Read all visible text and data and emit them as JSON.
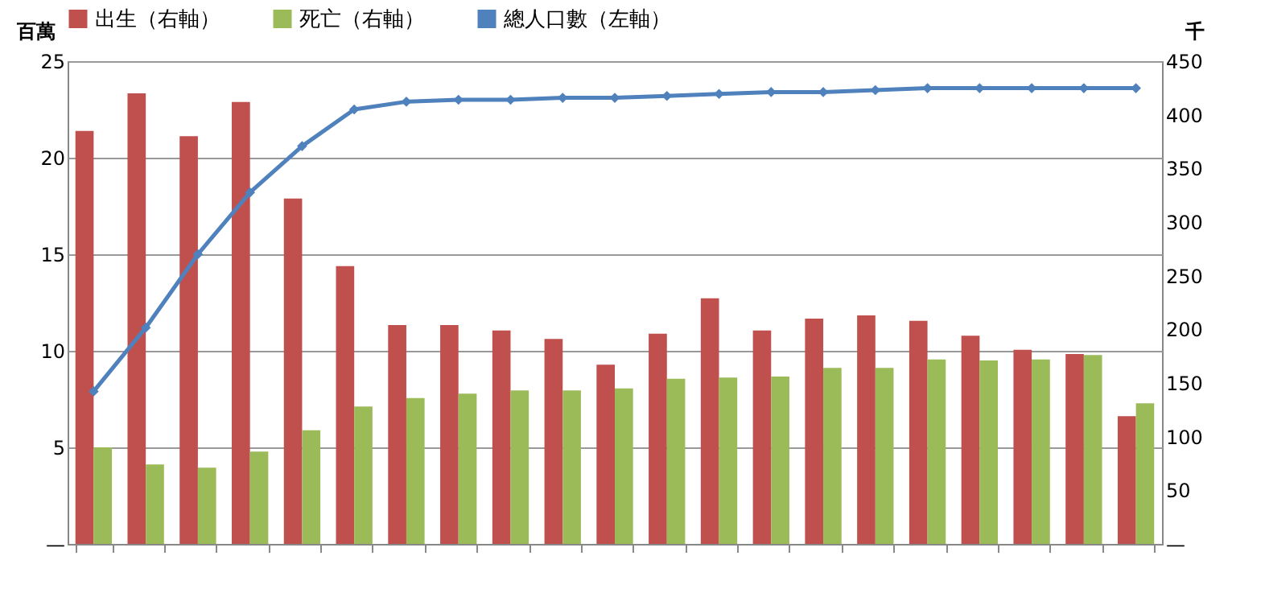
{
  "chart_data": {
    "type": "bar",
    "ylabel": "百萬",
    "y2label": "千",
    "categories": [
      null,
      null,
      null,
      null,
      null,
      null,
      null,
      null,
      null,
      null,
      null,
      null,
      null,
      null,
      null,
      null,
      null,
      null,
      null,
      null,
      null
    ],
    "series": [
      {
        "name": "出生（右軸）",
        "axis": "y2",
        "color": "#c0504d",
        "values": [
          385,
          420,
          380,
          412,
          322,
          259,
          204,
          204,
          199,
          191,
          167,
          196,
          229,
          199,
          210,
          213,
          208,
          194,
          181,
          177,
          119
        ]
      },
      {
        "name": "死亡（右軸）",
        "axis": "y2",
        "color": "#9bbb59",
        "values": [
          90,
          74,
          71,
          86,
          106,
          128,
          136,
          140,
          143,
          143,
          145,
          154,
          155,
          156,
          164,
          164,
          172,
          171,
          172,
          176,
          131
        ]
      },
      {
        "name": "總人口數（左軸）",
        "type": "line",
        "axis": "y",
        "color": "#4f81bd",
        "marker": "diamond",
        "values": [
          7.9,
          11.2,
          15.0,
          18.2,
          20.6,
          22.5,
          22.9,
          23.0,
          23.0,
          23.1,
          23.1,
          23.2,
          23.3,
          23.4,
          23.4,
          23.5,
          23.6,
          23.6,
          23.6,
          23.6,
          23.6
        ]
      }
    ],
    "ylim": [
      0,
      25
    ],
    "yticks": [
      {
        "value": 0,
        "label": "—"
      },
      5,
      10,
      15,
      20,
      25
    ],
    "y2lim": [
      0,
      450
    ],
    "y2ticks": [
      {
        "value": 0,
        "label": "—"
      },
      50,
      100,
      150,
      200,
      250,
      300,
      350,
      400,
      450
    ],
    "grid": "y",
    "legend": "top"
  }
}
